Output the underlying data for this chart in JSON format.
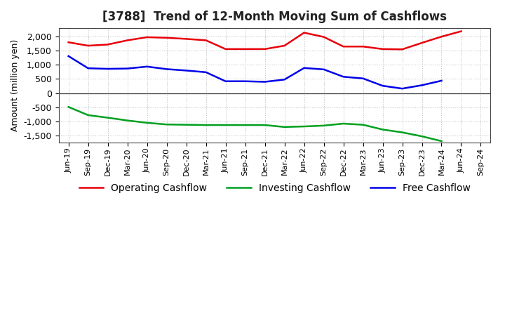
{
  "title": "[3788]  Trend of 12-Month Moving Sum of Cashflows",
  "ylabel": "Amount (million yen)",
  "x_labels": [
    "Jun-19",
    "Sep-19",
    "Dec-19",
    "Mar-20",
    "Jun-20",
    "Sep-20",
    "Dec-20",
    "Mar-21",
    "Jun-21",
    "Sep-21",
    "Dec-21",
    "Mar-22",
    "Jun-22",
    "Sep-22",
    "Dec-22",
    "Mar-23",
    "Jun-23",
    "Sep-23",
    "Dec-23",
    "Mar-24",
    "Jun-24",
    "Sep-24"
  ],
  "operating_cashflow": [
    1800,
    1680,
    1720,
    1870,
    1980,
    1960,
    1920,
    1870,
    1560,
    1560,
    1560,
    1680,
    2140,
    1990,
    1650,
    1650,
    1560,
    1550,
    1780,
    2000,
    2190,
    null
  ],
  "investing_cashflow": [
    -490,
    -780,
    -870,
    -970,
    -1050,
    -1110,
    -1120,
    -1130,
    -1130,
    -1130,
    -1130,
    -1200,
    -1180,
    -1150,
    -1080,
    -1120,
    -1290,
    -1390,
    -1530,
    -1700,
    null,
    null
  ],
  "free_cashflow": [
    1310,
    880,
    860,
    870,
    940,
    850,
    800,
    740,
    420,
    420,
    400,
    480,
    890,
    840,
    580,
    520,
    260,
    160,
    280,
    440,
    null,
    null
  ],
  "operating_color": "#e8000a",
  "investing_color": "#00a020",
  "free_color": "#0000e8",
  "ylim": [
    -1750,
    2300
  ],
  "yticks": [
    -1500,
    -1000,
    -500,
    0,
    500,
    1000,
    1500,
    2000
  ],
  "background_color": "#ffffff",
  "grid_color": "#bbbbbb",
  "title_fontsize": 12,
  "axis_fontsize": 8,
  "legend_fontsize": 10
}
